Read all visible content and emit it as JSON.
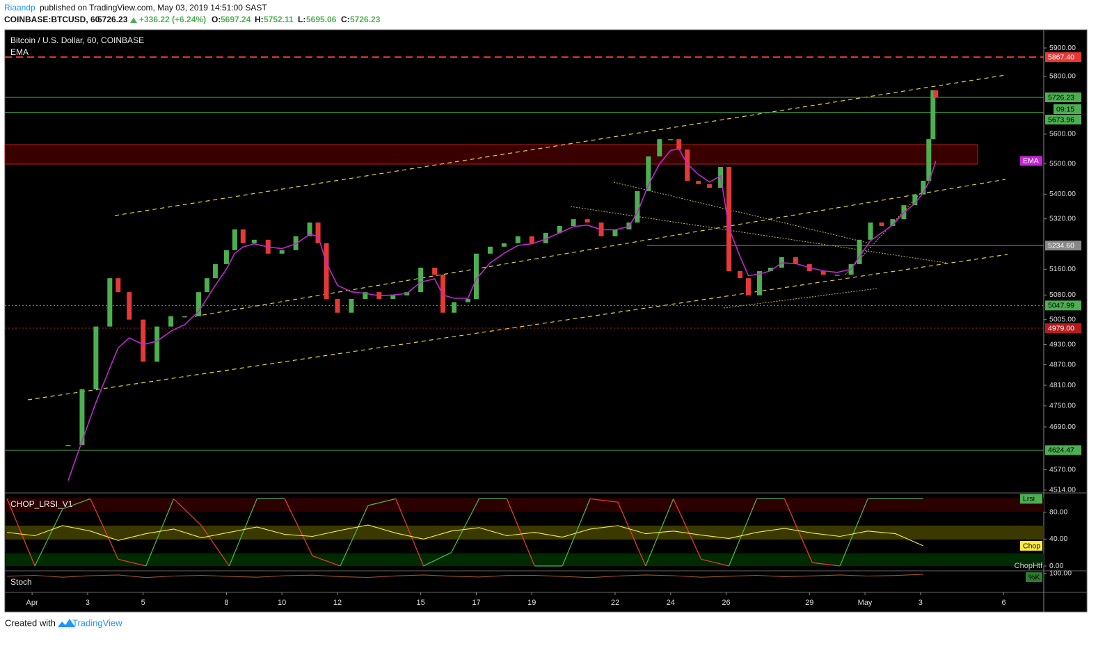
{
  "header": {
    "author": "Riaandp",
    "published": "published on TradingView.com, May 03, 2019 14:51:00 SAST",
    "symbol": "COINBASE:BTCUSD, 60",
    "last": "5726.23",
    "change": "+336.22 (+6.24%)",
    "open_label": "O:",
    "open": "5697.24",
    "high_label": "H:",
    "high": "5752.11",
    "low_label": "L:",
    "low": "5695.06",
    "close_label": "C:",
    "close": "5726.23"
  },
  "chart_data": [
    {
      "type": "candlestick",
      "title": "Bitcoin / U.S. Dollar, 60, COINBASE",
      "log_scale": true,
      "up_color": "#4caf50",
      "down_color": "#e53935",
      "x": [
        1.3,
        1.8,
        2.3,
        2.8,
        3.1,
        3.5,
        4.0,
        4.5,
        5.0,
        5.5,
        6.0,
        6.3,
        6.6,
        7.0,
        7.3,
        7.6,
        8.0,
        8.5,
        9.0,
        9.5,
        10.0,
        10.3,
        10.6,
        11.0,
        11.5,
        12.0,
        12.5,
        13.0,
        13.5,
        14.0,
        14.5,
        14.8,
        15.2,
        15.7,
        16.0,
        16.5,
        17.0,
        17.5,
        18.0,
        18.5,
        19.0,
        19.5,
        20.0,
        20.5,
        21.0,
        21.5,
        21.8,
        22.2,
        22.6,
        23.0,
        23.3,
        23.6,
        24.0,
        24.4,
        24.8,
        25.1,
        25.5,
        25.8,
        26.2,
        26.6,
        27.0,
        27.5,
        28.0,
        28.5,
        29.0,
        29.5,
        29.8,
        30.2,
        30.6,
        31.0,
        31.4,
        31.8,
        32.1,
        32.3,
        32.45,
        32.55
      ],
      "values": [
        4639,
        4798,
        4984,
        5132,
        5089,
        5005,
        4879,
        4984,
        5015,
        5015,
        5089,
        5132,
        5176,
        5220,
        5286,
        5242,
        5253,
        5209,
        5220,
        5264,
        5308,
        5242,
        5068,
        5026,
        5068,
        5089,
        5068,
        5079,
        5089,
        5165,
        5143,
        5026,
        5058,
        5068,
        5209,
        5231,
        5242,
        5264,
        5242,
        5275,
        5297,
        5319,
        5308,
        5264,
        5286,
        5308,
        5410,
        5525,
        5583,
        5583,
        5548,
        5444,
        5433,
        5421,
        5490,
        5154,
        5132,
        5079,
        5154,
        5165,
        5198,
        5176,
        5154,
        5143,
        5143,
        5176,
        5253,
        5308,
        5297,
        5319,
        5364,
        5399,
        5444,
        5583,
        5751,
        5726.23
      ],
      "series": [
        {
          "name": "EMA",
          "color": "#c026d3",
          "values": [
            4540,
            4650,
            4760,
            4860,
            4920,
            4950,
            4930,
            4940,
            4970,
            4990,
            5030,
            5070,
            5110,
            5160,
            5210,
            5230,
            5240,
            5230,
            5225,
            5240,
            5270,
            5265,
            5180,
            5110,
            5090,
            5085,
            5078,
            5080,
            5085,
            5120,
            5130,
            5080,
            5070,
            5070,
            5130,
            5180,
            5210,
            5235,
            5240,
            5255,
            5275,
            5295,
            5300,
            5285,
            5285,
            5295,
            5340,
            5430,
            5500,
            5545,
            5550,
            5500,
            5465,
            5440,
            5460,
            5290,
            5200,
            5140,
            5145,
            5155,
            5180,
            5178,
            5165,
            5155,
            5150,
            5160,
            5200,
            5250,
            5275,
            5300,
            5340,
            5370,
            5405,
            5440,
            5480,
            5510
          ]
        }
      ],
      "levels": [
        {
          "value": 5867.4,
          "label": "5867.40",
          "color": "#e53935",
          "style": "dashed"
        },
        {
          "value": 5726.23,
          "label": "5726.23",
          "color": "#4caf50",
          "style": "solid"
        },
        {
          "value": 5673.96,
          "label": "5673.96",
          "color": "#4caf50",
          "style": "solid"
        },
        {
          "value": 5234.6,
          "label": "5234.60",
          "color": "#888888",
          "style": "solid"
        },
        {
          "value": 5047.99,
          "label": "5047.99",
          "color": "#4caf50",
          "style": "dotted"
        },
        {
          "value": 4979,
          "label": "4979.00",
          "color": "#b71c1c",
          "style": "dotted"
        },
        {
          "value": 4624.47,
          "label": "4624.47",
          "color": "#4caf50",
          "style": "solid"
        }
      ],
      "countdown": "09:15",
      "xlim": [
        -0.98,
        36.44
      ],
      "ylim": [
        4508,
        5965
      ],
      "xticks": [
        {
          "value": 0,
          "label": "Apr"
        },
        {
          "value": 2,
          "label": "3"
        },
        {
          "value": 4,
          "label": "5"
        },
        {
          "value": 7,
          "label": "8"
        },
        {
          "value": 9,
          "label": "10"
        },
        {
          "value": 11,
          "label": "12"
        },
        {
          "value": 14,
          "label": "15"
        },
        {
          "value": 16,
          "label": "17"
        },
        {
          "value": 18,
          "label": "19"
        },
        {
          "value": 21,
          "label": "22"
        },
        {
          "value": 23,
          "label": "24"
        },
        {
          "value": 25,
          "label": "26"
        },
        {
          "value": 28,
          "label": "29"
        },
        {
          "value": 30,
          "label": "May"
        },
        {
          "value": 32,
          "label": "3"
        },
        {
          "value": 35,
          "label": "6"
        }
      ],
      "yticks": [
        {
          "value": 5900,
          "label": "5900.00"
        },
        {
          "value": 5800,
          "label": "5800.00"
        },
        {
          "value": 5600,
          "label": "5600.00"
        },
        {
          "value": 5500,
          "label": "5500.00"
        },
        {
          "value": 5400,
          "label": "5400.00"
        },
        {
          "value": 5320,
          "label": "5320.00"
        },
        {
          "value": 5160,
          "label": "5160.00"
        },
        {
          "value": 5080,
          "label": "5080.00"
        },
        {
          "value": 5005,
          "label": "5005.00"
        },
        {
          "value": 4930,
          "label": "4930.00"
        },
        {
          "value": 4870,
          "label": "4870.00"
        },
        {
          "value": 4810,
          "label": "4810.00"
        },
        {
          "value": 4750,
          "label": "4750.00"
        },
        {
          "value": 4690,
          "label": "4690.00"
        },
        {
          "value": 4570,
          "label": "4570.00"
        },
        {
          "value": 4514,
          "label": "4514.00"
        }
      ]
    },
    {
      "type": "line",
      "title": "CHOP_LRSI_V1",
      "labels": [
        "ChopHtf"
      ],
      "x": [
        -0.9,
        0.1,
        1.1,
        2.1,
        3.1,
        4.1,
        5.1,
        6.1,
        7.1,
        8.1,
        9.1,
        10.1,
        11.1,
        12.1,
        13.1,
        14.1,
        15.1,
        16.1,
        17.1,
        18.1,
        19.1,
        20.1,
        21.1,
        22.1,
        23.1,
        24.1,
        25.1,
        26.1,
        27.1,
        28.1,
        29.1,
        30.1,
        31.1,
        32.1
      ],
      "series": [
        {
          "name": "Lrsi",
          "color": "#4caf50",
          "down_color": "#e53935",
          "values": [
            100,
            0,
            85,
            100,
            10,
            0,
            100,
            60,
            0,
            100,
            100,
            15,
            0,
            90,
            100,
            0,
            20,
            100,
            100,
            0,
            0,
            100,
            95,
            0,
            100,
            10,
            0,
            100,
            100,
            5,
            0,
            100,
            100,
            100
          ]
        },
        {
          "name": "Chop",
          "color": "#ffeb3b",
          "values": [
            50,
            45,
            60,
            52,
            38,
            48,
            55,
            42,
            50,
            58,
            47,
            44,
            53,
            61,
            49,
            40,
            52,
            57,
            45,
            50,
            43,
            55,
            60,
            48,
            52,
            46,
            41,
            50,
            56,
            49,
            44,
            52,
            48,
            30
          ]
        }
      ],
      "xlim": [
        -0.98,
        36.44
      ],
      "ylim": [
        -6.2,
        108.7
      ],
      "yticks": [
        {
          "value": 80,
          "label": "80.00"
        },
        {
          "value": 40,
          "label": "40.00"
        },
        {
          "value": 0,
          "label": "0.00"
        }
      ]
    },
    {
      "type": "line",
      "title": "Stoch",
      "x": [
        -0.9,
        0.1,
        1.1,
        2.1,
        3.1,
        4.1,
        5.1,
        6.1,
        7.1,
        8.1,
        9.1,
        10.1,
        11.1,
        12.1,
        13.1,
        14.1,
        15.1,
        16.1,
        17.1,
        18.1,
        19.1,
        20.1,
        21.1,
        22.1,
        23.1,
        24.1,
        25.1,
        26.1,
        27.1,
        28.1,
        29.1,
        30.1,
        31.1,
        32.1
      ],
      "series": [
        {
          "name": "%K",
          "color": "#a0522d",
          "values": [
            85,
            90,
            80,
            88,
            92,
            78,
            86,
            90,
            84,
            80,
            88,
            91,
            83,
            79,
            87,
            92,
            85,
            81,
            89,
            90,
            84,
            78,
            86,
            92,
            88,
            80,
            85,
            90,
            83,
            87,
            92,
            86,
            89,
            95
          ]
        }
      ],
      "xlim": [
        -0.98,
        36.44
      ],
      "ylim": [
        0,
        110
      ],
      "yticks": [
        {
          "value": 100,
          "label": "100.00"
        }
      ]
    }
  ],
  "footer": {
    "created": "Created with",
    "brand": "TradingView"
  }
}
